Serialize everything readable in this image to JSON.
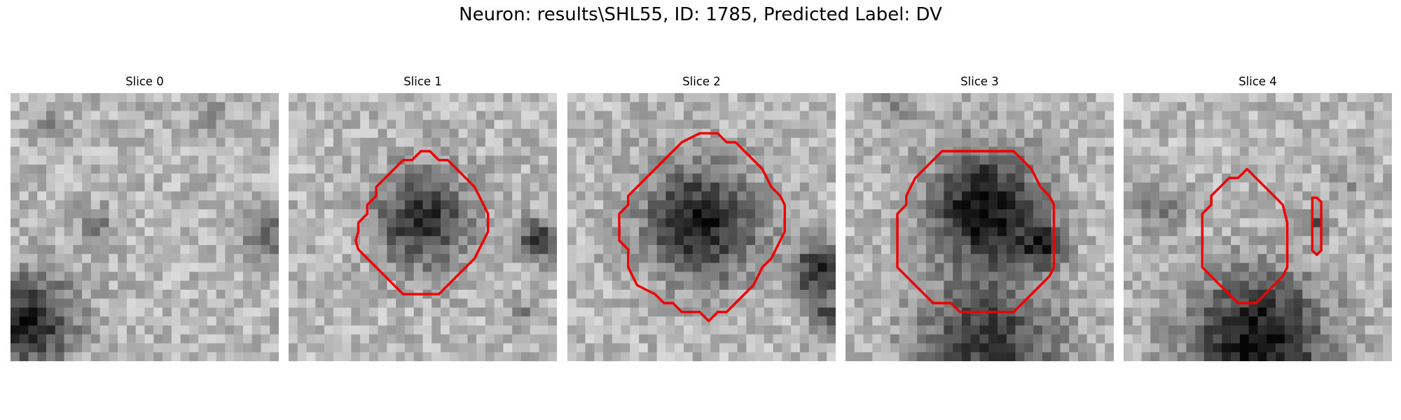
{
  "figure": {
    "suptitle": "Neuron: results\\SHL55, ID: 1785, Predicted Label: DV"
  },
  "colors": {
    "contour": "#ee0000",
    "colormap": "gray"
  },
  "panels": [
    {
      "title": "Slice 0",
      "has_contour": false
    },
    {
      "title": "Slice 1",
      "has_contour": true
    },
    {
      "title": "Slice 2",
      "has_contour": true
    },
    {
      "title": "Slice 3",
      "has_contour": true
    },
    {
      "title": "Slice 4",
      "has_contour": true
    }
  ]
}
